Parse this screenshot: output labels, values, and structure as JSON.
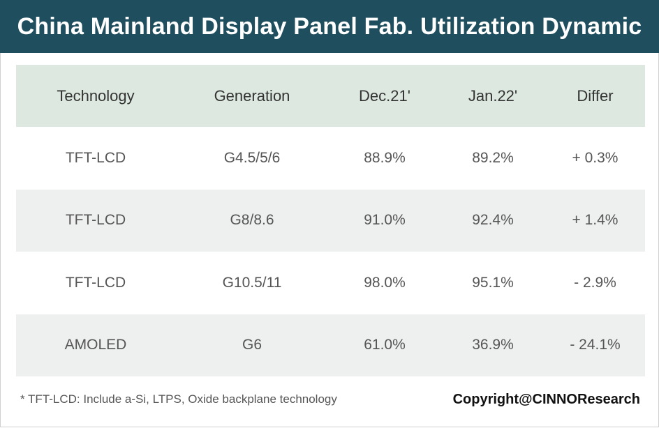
{
  "title": "China Mainland Display Panel Fab. Utilization Dynamic",
  "chart_data": {
    "type": "table",
    "title": "China Mainland Display Panel Fab. Utilization Dynamic",
    "columns": [
      "Technology",
      "Generation",
      "Dec.21'",
      "Jan.22'",
      "Differ"
    ],
    "rows": [
      [
        "TFT-LCD",
        "G4.5/5/6",
        "88.9%",
        "89.2%",
        "+ 0.3%"
      ],
      [
        "TFT-LCD",
        "G8/8.6",
        "91.0%",
        "92.4%",
        "+ 1.4%"
      ],
      [
        "TFT-LCD",
        "G10.5/11",
        "98.0%",
        "95.1%",
        "- 2.9%"
      ],
      [
        "AMOLED",
        "G6",
        "61.0%",
        "36.9%",
        "- 24.1%"
      ]
    ]
  },
  "footnote": "* TFT-LCD: Include a-Si, LTPS, Oxide backplane technology",
  "copyright": "Copyright@CINNOResearch",
  "colors": {
    "banner": "#1f4e5f",
    "header_row": "#dde9e0",
    "alt_row": "#eef0ef"
  }
}
